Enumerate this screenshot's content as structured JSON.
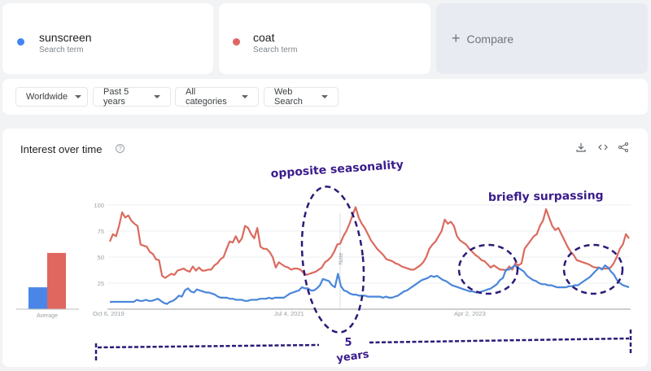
{
  "terms": [
    {
      "name": "sunscreen",
      "sub": "Search term",
      "color": "#4285f4"
    },
    {
      "name": "coat",
      "sub": "Search term",
      "color": "#db4437"
    }
  ],
  "compare": {
    "label": "Compare",
    "icon": "plus-icon"
  },
  "filters": {
    "region": "Worldwide",
    "period": "Past 5 years",
    "category": "All categories",
    "type": "Web Search"
  },
  "panel": {
    "title": "Interest over time",
    "help_icon": "?",
    "tools": [
      "download-icon",
      "embed-icon",
      "share-icon"
    ]
  },
  "annotations": {
    "opposite": "opposite seasonality",
    "surpassing": "briefly surpassing",
    "five": "5",
    "years": "years",
    "note": "Note"
  },
  "chart_data": [
    {
      "type": "bar",
      "title": "Average",
      "categories": [
        "sunscreen",
        "coat"
      ],
      "values": [
        21,
        54
      ],
      "colors": [
        "#4285f4",
        "#db4437"
      ],
      "xlabel": "Average"
    },
    {
      "type": "line",
      "title": "Interest over time",
      "yticks": [
        25,
        50,
        75,
        100
      ],
      "ylim": [
        0,
        100
      ],
      "xticks": [
        "Oct 6, 2019",
        "Jul 4, 2021",
        "Apr 2, 2023"
      ],
      "x_range": [
        "Oct 2019",
        "Sep 2024"
      ],
      "grid": true,
      "series": [
        {
          "name": "coat",
          "color": "#db4437",
          "values": [
            65,
            72,
            70,
            80,
            93,
            88,
            90,
            85,
            82,
            80,
            62,
            61,
            60,
            55,
            53,
            48,
            47,
            32,
            30,
            32,
            34,
            33,
            37,
            38,
            39,
            37,
            36,
            41,
            37,
            40,
            37,
            37,
            38,
            38,
            42,
            44,
            48,
            50,
            58,
            65,
            64,
            70,
            64,
            68,
            80,
            78,
            72,
            68,
            78,
            60,
            58,
            58,
            55,
            50,
            40,
            45,
            43,
            41,
            40,
            38,
            39,
            39,
            38,
            35,
            33,
            34,
            35,
            36,
            38,
            40,
            45,
            47,
            50,
            55,
            62,
            63,
            70,
            75,
            82,
            90,
            98,
            88,
            82,
            78,
            72,
            66,
            62,
            58,
            55,
            52,
            48,
            47,
            46,
            44,
            43,
            41,
            40,
            39,
            38,
            38,
            40,
            42,
            45,
            50,
            58,
            62,
            65,
            70,
            75,
            86,
            82,
            84,
            80,
            70,
            66,
            64,
            62,
            58,
            55,
            52,
            50,
            47,
            46,
            43,
            40,
            42,
            40,
            38,
            38,
            37,
            41,
            38,
            44,
            42,
            44,
            58,
            62,
            66,
            70,
            72,
            80,
            85,
            96,
            88,
            80,
            76,
            78,
            72,
            66,
            60,
            55,
            52,
            47,
            46,
            45,
            44,
            43,
            41,
            40,
            40,
            39,
            39,
            39,
            40,
            44,
            50,
            58,
            62,
            72,
            68
          ]
        },
        {
          "name": "sunscreen",
          "color": "#4285f4",
          "values": [
            7,
            7,
            7,
            7,
            7,
            7,
            7,
            7,
            7,
            9,
            8,
            8,
            9,
            8,
            8,
            9,
            10,
            8,
            6,
            5,
            7,
            8,
            10,
            13,
            12,
            18,
            20,
            17,
            16,
            19,
            18,
            17,
            16,
            16,
            15,
            14,
            12,
            11,
            11,
            11,
            10,
            10,
            9,
            9,
            9,
            8,
            8,
            9,
            9,
            9,
            10,
            10,
            10,
            11,
            10,
            11,
            11,
            11,
            11,
            13,
            15,
            16,
            17,
            18,
            21,
            20,
            20,
            18,
            18,
            20,
            23,
            29,
            28,
            27,
            23,
            21,
            34,
            22,
            18,
            17,
            15,
            14,
            14,
            13,
            13,
            13,
            12,
            12,
            12,
            12,
            12,
            11,
            12,
            11,
            11,
            12,
            13,
            15,
            17,
            18,
            20,
            22,
            24,
            26,
            28,
            29,
            30,
            32,
            31,
            32,
            30,
            28,
            27,
            25,
            23,
            22,
            21,
            20,
            19,
            18,
            17,
            17,
            16,
            16,
            17,
            18,
            19,
            20,
            22,
            24,
            28,
            30,
            38,
            38,
            40,
            42,
            40,
            38,
            36,
            32,
            30,
            28,
            27,
            25,
            24,
            24,
            23,
            23,
            22,
            21,
            21,
            21,
            21,
            22,
            22,
            23,
            23,
            25,
            27,
            29,
            31,
            34,
            37,
            40,
            38,
            42,
            40,
            36,
            33,
            28,
            25,
            23,
            22,
            21
          ]
        }
      ]
    }
  ]
}
